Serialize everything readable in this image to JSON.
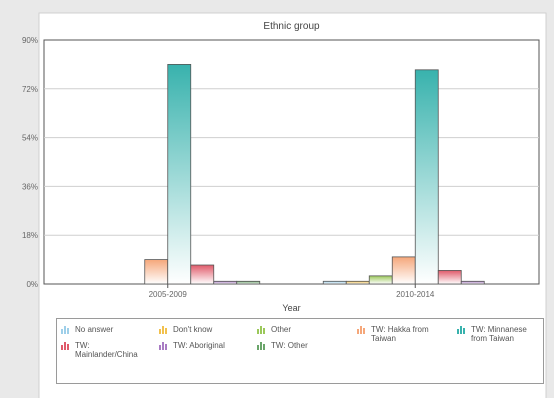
{
  "chart_data": {
    "type": "bar",
    "title": "Ethnic group",
    "xlabel": "Year",
    "ylabel": "",
    "ylim": [
      0,
      90
    ],
    "yticks": [
      "0%",
      "18%",
      "36%",
      "54%",
      "72%",
      "90%"
    ],
    "categories": [
      "2005-2009",
      "2010-2014"
    ],
    "grid": true,
    "legend_position": "bottom",
    "series": [
      {
        "name": "No answer",
        "color": "#9ecfe9",
        "values": [
          0,
          1
        ]
      },
      {
        "name": "Don't know",
        "color": "#f2c14e",
        "values": [
          0,
          1
        ]
      },
      {
        "name": "Other",
        "color": "#9bc85a",
        "values": [
          0,
          3
        ]
      },
      {
        "name": "TW: Hakka from Taiwan",
        "color": "#f5a77a",
        "values": [
          9,
          10
        ]
      },
      {
        "name": "TW: Minnanese from Taiwan",
        "color": "#38b2ad",
        "values": [
          81,
          79
        ]
      },
      {
        "name": "TW: Mainlander/China",
        "color": "#e05a6a",
        "values": [
          7,
          5
        ]
      },
      {
        "name": "TW: Aboriginal",
        "color": "#a97cc4",
        "values": [
          1,
          1
        ]
      },
      {
        "name": "TW: Other",
        "color": "#6aa56a",
        "values": [
          1,
          0
        ]
      }
    ]
  },
  "legend": {
    "items": [
      {
        "label": "No answer",
        "color": "#9ecfe9"
      },
      {
        "label": "Don't know",
        "color": "#f2c14e"
      },
      {
        "label": "Other",
        "color": "#9bc85a"
      },
      {
        "label": "TW: Hakka from Taiwan",
        "color": "#f5a77a"
      },
      {
        "label": "TW: Minnanese from Taiwan",
        "color": "#38b2ad"
      },
      {
        "label": "TW: Mainlander/China",
        "color": "#e05a6a"
      },
      {
        "label": "TW: Aboriginal",
        "color": "#a97cc4"
      },
      {
        "label": "TW: Other",
        "color": "#6aa56a"
      }
    ]
  }
}
